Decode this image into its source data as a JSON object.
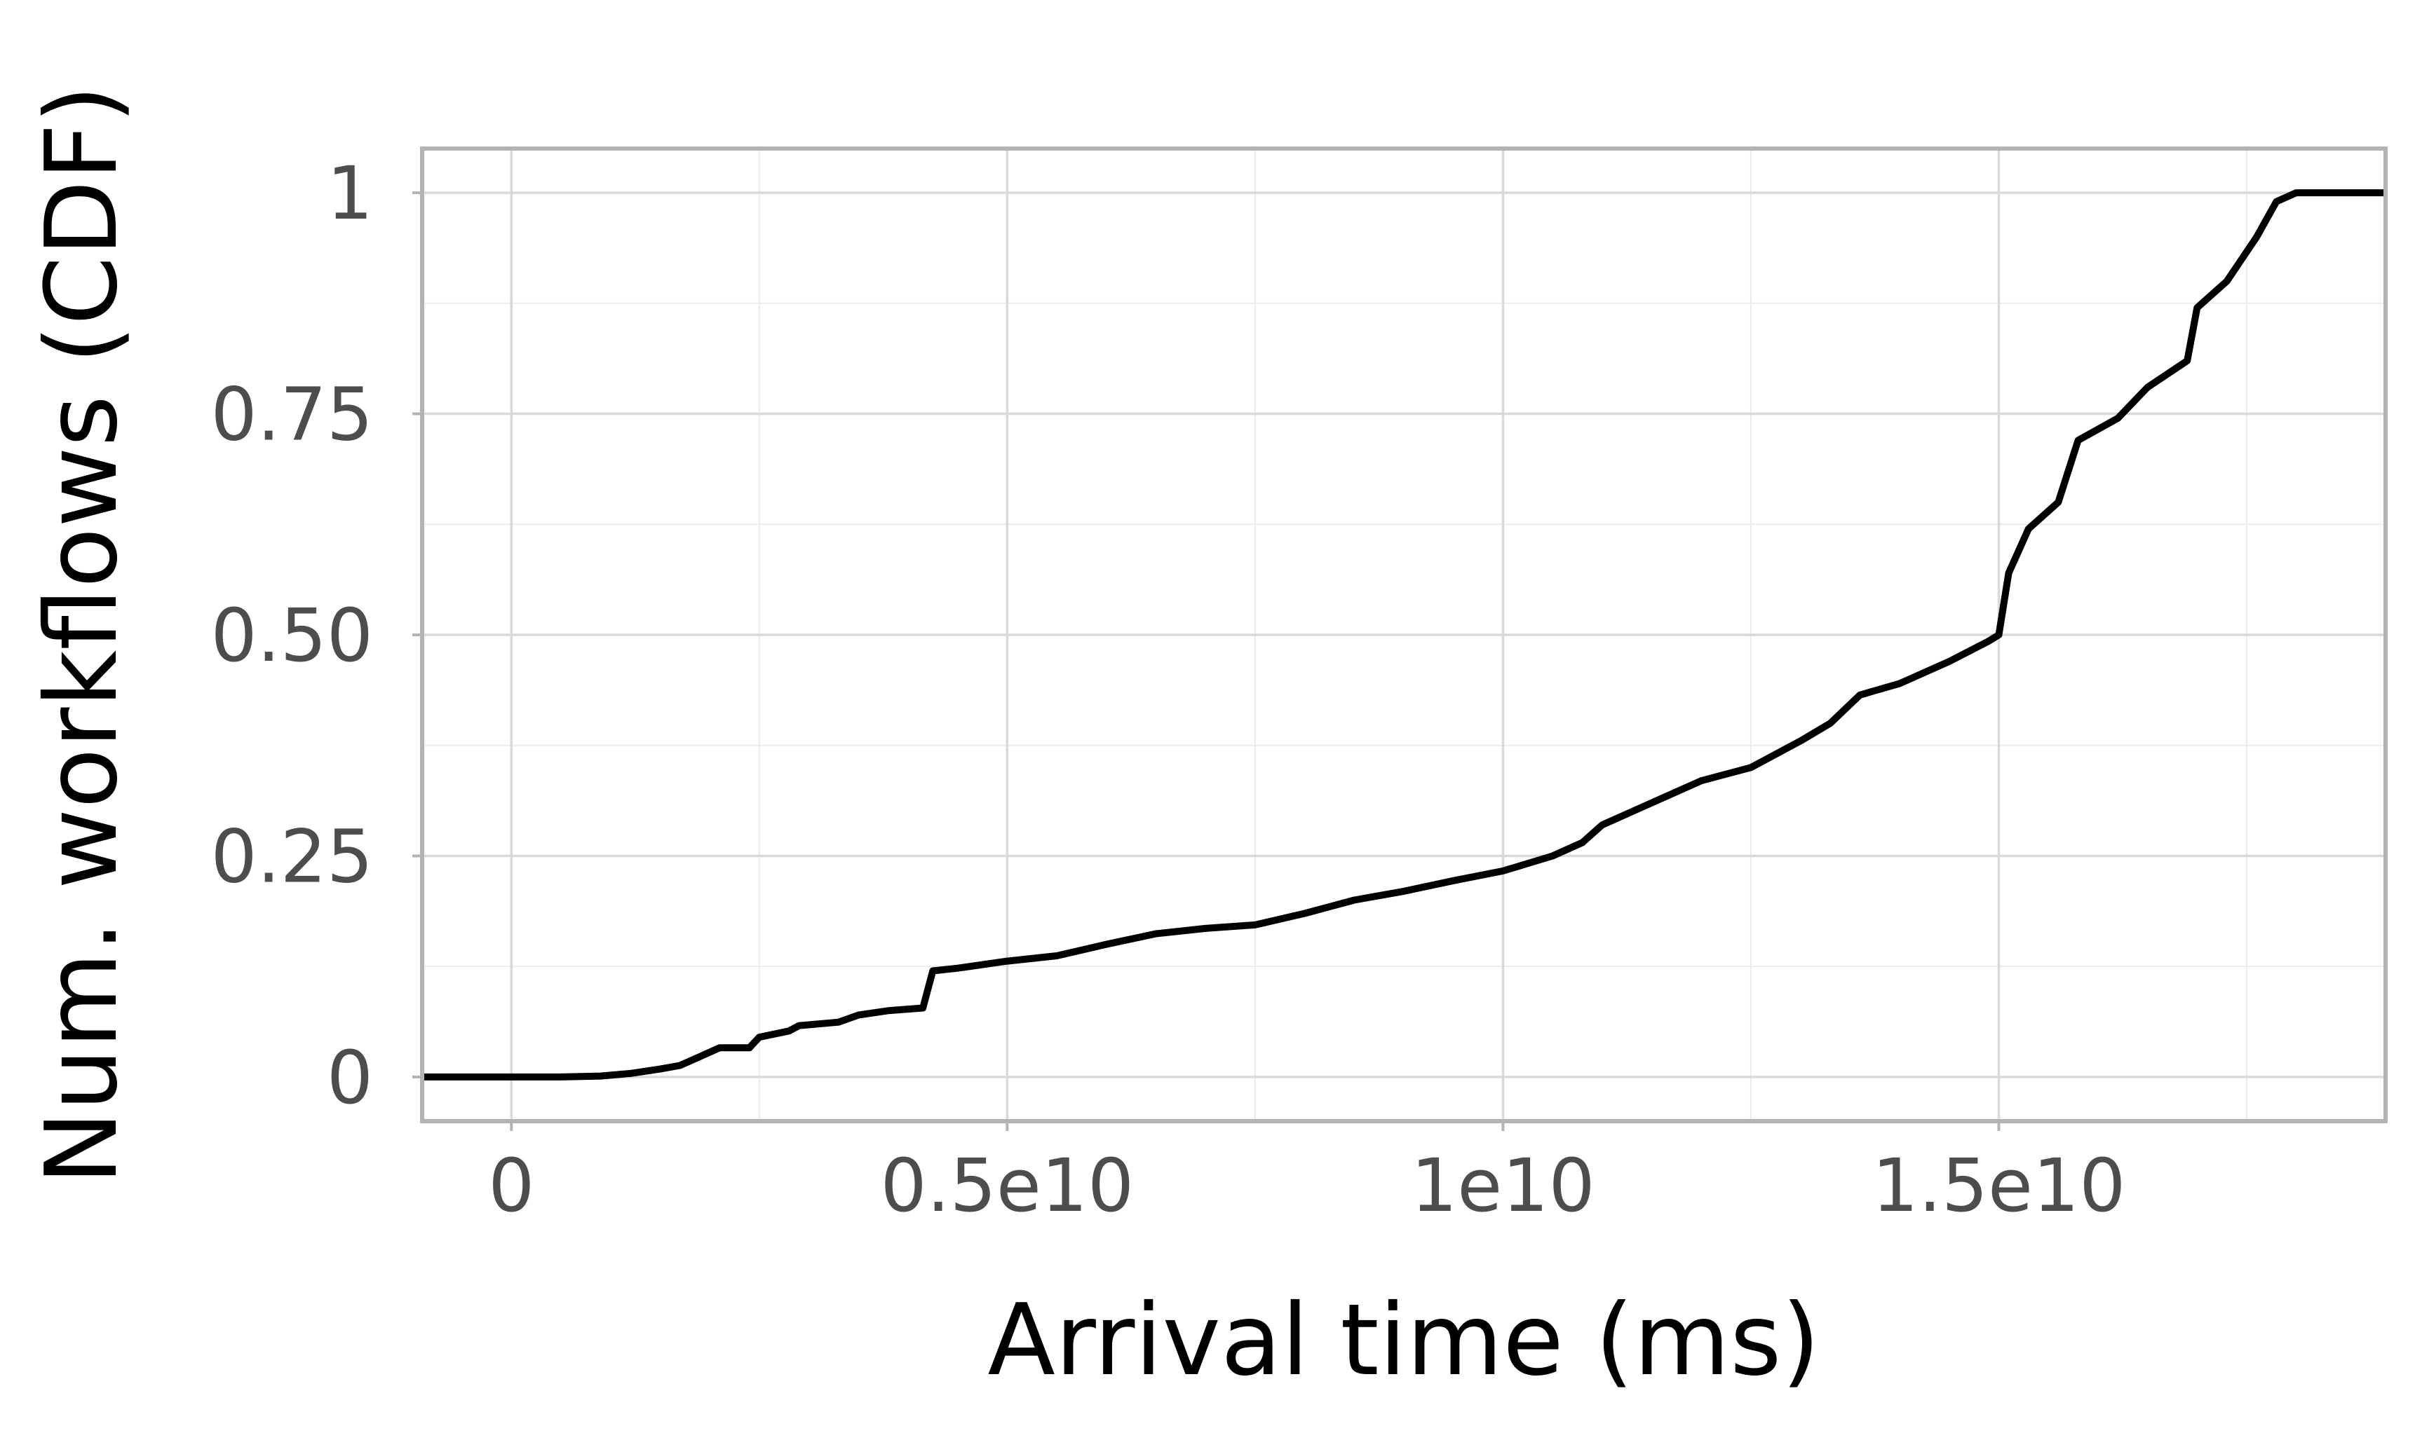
{
  "chart_data": {
    "type": "line",
    "title": "",
    "xlabel": "Arrival time (ms)",
    "ylabel": "Num. workflows (CDF)",
    "xlim": [
      -900000000,
      18900000000
    ],
    "ylim": [
      -0.05,
      1.05
    ],
    "grid": true,
    "line_color": "#000000",
    "x_ticks": [
      {
        "value": 0,
        "label": "0"
      },
      {
        "value": 5000000000,
        "label": "0.5e10"
      },
      {
        "value": 10000000000,
        "label": "1e10"
      },
      {
        "value": 15000000000,
        "label": "1.5e10"
      }
    ],
    "y_ticks": [
      {
        "value": 0,
        "label": "0"
      },
      {
        "value": 0.25,
        "label": "0.25"
      },
      {
        "value": 0.5,
        "label": "0.50"
      },
      {
        "value": 0.75,
        "label": "0.75"
      },
      {
        "value": 1,
        "label": "1"
      }
    ],
    "series": [
      {
        "values": [
          [
            -900000000,
            0
          ],
          [
            0,
            0
          ],
          [
            500000000,
            0
          ],
          [
            900000000,
            0.001
          ],
          [
            1200000000,
            0.004
          ],
          [
            1500000000,
            0.009
          ],
          [
            1700000000,
            0.013
          ],
          [
            1900000000,
            0.023
          ],
          [
            2100000000,
            0.033
          ],
          [
            2400000000,
            0.033
          ],
          [
            2500000000,
            0.045
          ],
          [
            2800000000,
            0.052
          ],
          [
            2900000000,
            0.058
          ],
          [
            3300000000,
            0.062
          ],
          [
            3500000000,
            0.07
          ],
          [
            3800000000,
            0.075
          ],
          [
            4150000000,
            0.078
          ],
          [
            4250000000,
            0.12
          ],
          [
            4500000000,
            0.123
          ],
          [
            5000000000,
            0.131
          ],
          [
            5500000000,
            0.137
          ],
          [
            6000000000,
            0.15
          ],
          [
            6500000000,
            0.162
          ],
          [
            7000000000,
            0.168
          ],
          [
            7500000000,
            0.172
          ],
          [
            8000000000,
            0.185
          ],
          [
            8500000000,
            0.2
          ],
          [
            9000000000,
            0.21
          ],
          [
            9500000000,
            0.222
          ],
          [
            10000000000,
            0.233
          ],
          [
            10500000000,
            0.25
          ],
          [
            10800000000,
            0.265
          ],
          [
            11000000000,
            0.285
          ],
          [
            11500000000,
            0.31
          ],
          [
            12000000000,
            0.335
          ],
          [
            12500000000,
            0.35
          ],
          [
            13000000000,
            0.38
          ],
          [
            13300000000,
            0.4
          ],
          [
            13600000000,
            0.432
          ],
          [
            14000000000,
            0.445
          ],
          [
            14500000000,
            0.47
          ],
          [
            14900000000,
            0.493
          ],
          [
            15000000000,
            0.5
          ],
          [
            15100000000,
            0.57
          ],
          [
            15300000000,
            0.62
          ],
          [
            15600000000,
            0.65
          ],
          [
            15800000000,
            0.72
          ],
          [
            16200000000,
            0.745
          ],
          [
            16500000000,
            0.78
          ],
          [
            16900000000,
            0.81
          ],
          [
            17000000000,
            0.87
          ],
          [
            17300000000,
            0.9
          ],
          [
            17600000000,
            0.95
          ],
          [
            17800000000,
            0.99
          ],
          [
            18000000000,
            1.0
          ],
          [
            18900000000,
            1.0
          ]
        ]
      }
    ]
  }
}
